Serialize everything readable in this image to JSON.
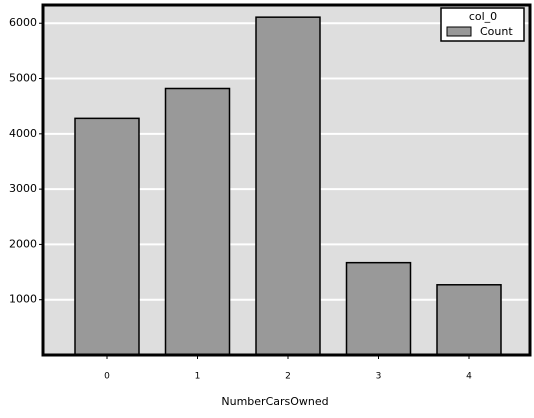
{
  "chart_data": {
    "type": "bar",
    "x_label": "NumberCarsOwned",
    "categories": [
      "0",
      "1",
      "2",
      "3",
      "4"
    ],
    "series": [
      {
        "name": "Count",
        "color": "#999999",
        "values": [
          4280,
          4820,
          6110,
          1670,
          1270
        ]
      }
    ],
    "ylim": [
      0,
      6330
    ],
    "yticks": [
      1000,
      2000,
      3000,
      4000,
      5000,
      6000
    ],
    "grid": true,
    "legend_title": "col_0",
    "legend_position": "upper right"
  }
}
